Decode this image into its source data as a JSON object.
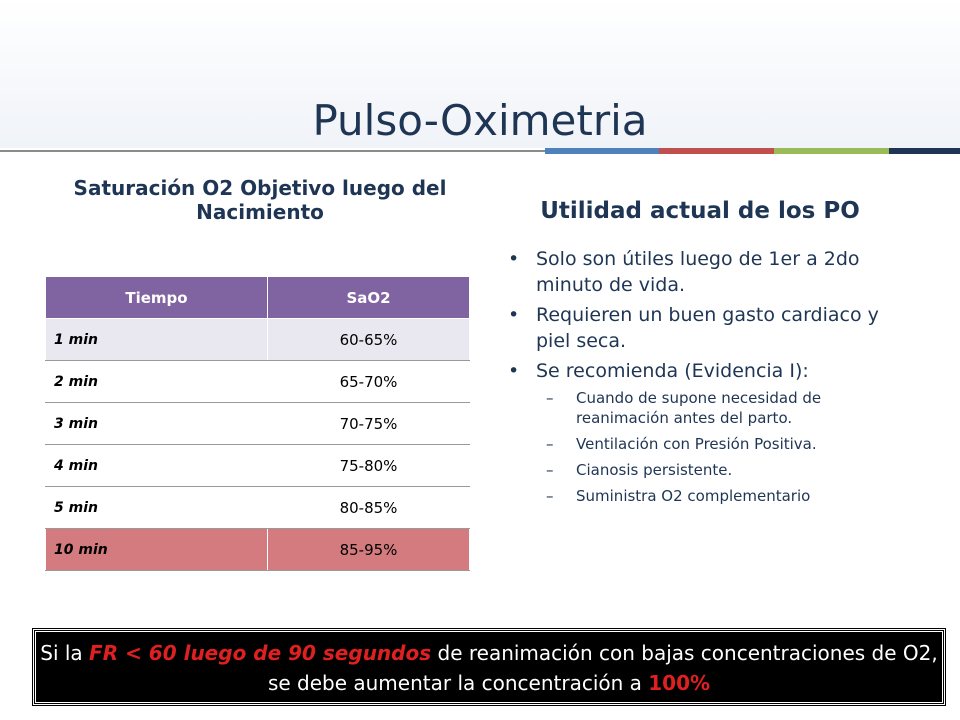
{
  "title": "Pulso-Oximetria",
  "left_heading": "Saturación O2 Objetivo luego del Nacimiento",
  "right_heading": "Utilidad actual de los PO",
  "table": {
    "headers": [
      "Tiempo",
      "SaO2"
    ],
    "rows": [
      {
        "tiempo": "1 min",
        "sao2": "60-65%"
      },
      {
        "tiempo": "2 min",
        "sao2": "65-70%"
      },
      {
        "tiempo": "3 min",
        "sao2": "70-75%"
      },
      {
        "tiempo": "4 min",
        "sao2": "75-80%"
      },
      {
        "tiempo": "5 min",
        "sao2": "80-85%"
      },
      {
        "tiempo": "10 min",
        "sao2": "85-95%"
      }
    ]
  },
  "bullets": [
    {
      "text": "Solo son útiles luego de 1er a 2do minuto de vida."
    },
    {
      "text": "Requieren un buen gasto cardiaco y piel seca."
    },
    {
      "text": "Se recomienda (Evidencia I):",
      "sub": [
        "Cuando de supone necesidad de reanimación antes del parto.",
        "Ventilación con Presión Positiva.",
        "Cianosis persistente.",
        "Suministra O2 complementario"
      ]
    }
  ],
  "banner": {
    "part1": "Si la ",
    "part2": "FR < 60 luego de 90 segundos",
    "part3": " de reanimación con bajas concentraciones de O2, se debe aumentar la concentración a ",
    "part4": "100%"
  },
  "colors": {
    "title": "#1f3554",
    "header_purple": "#8064a2",
    "highlight_red": "#d37b7e",
    "accent_bars": [
      "#4f81bd",
      "#c0504d",
      "#9bbb59",
      "#1f3554"
    ]
  }
}
